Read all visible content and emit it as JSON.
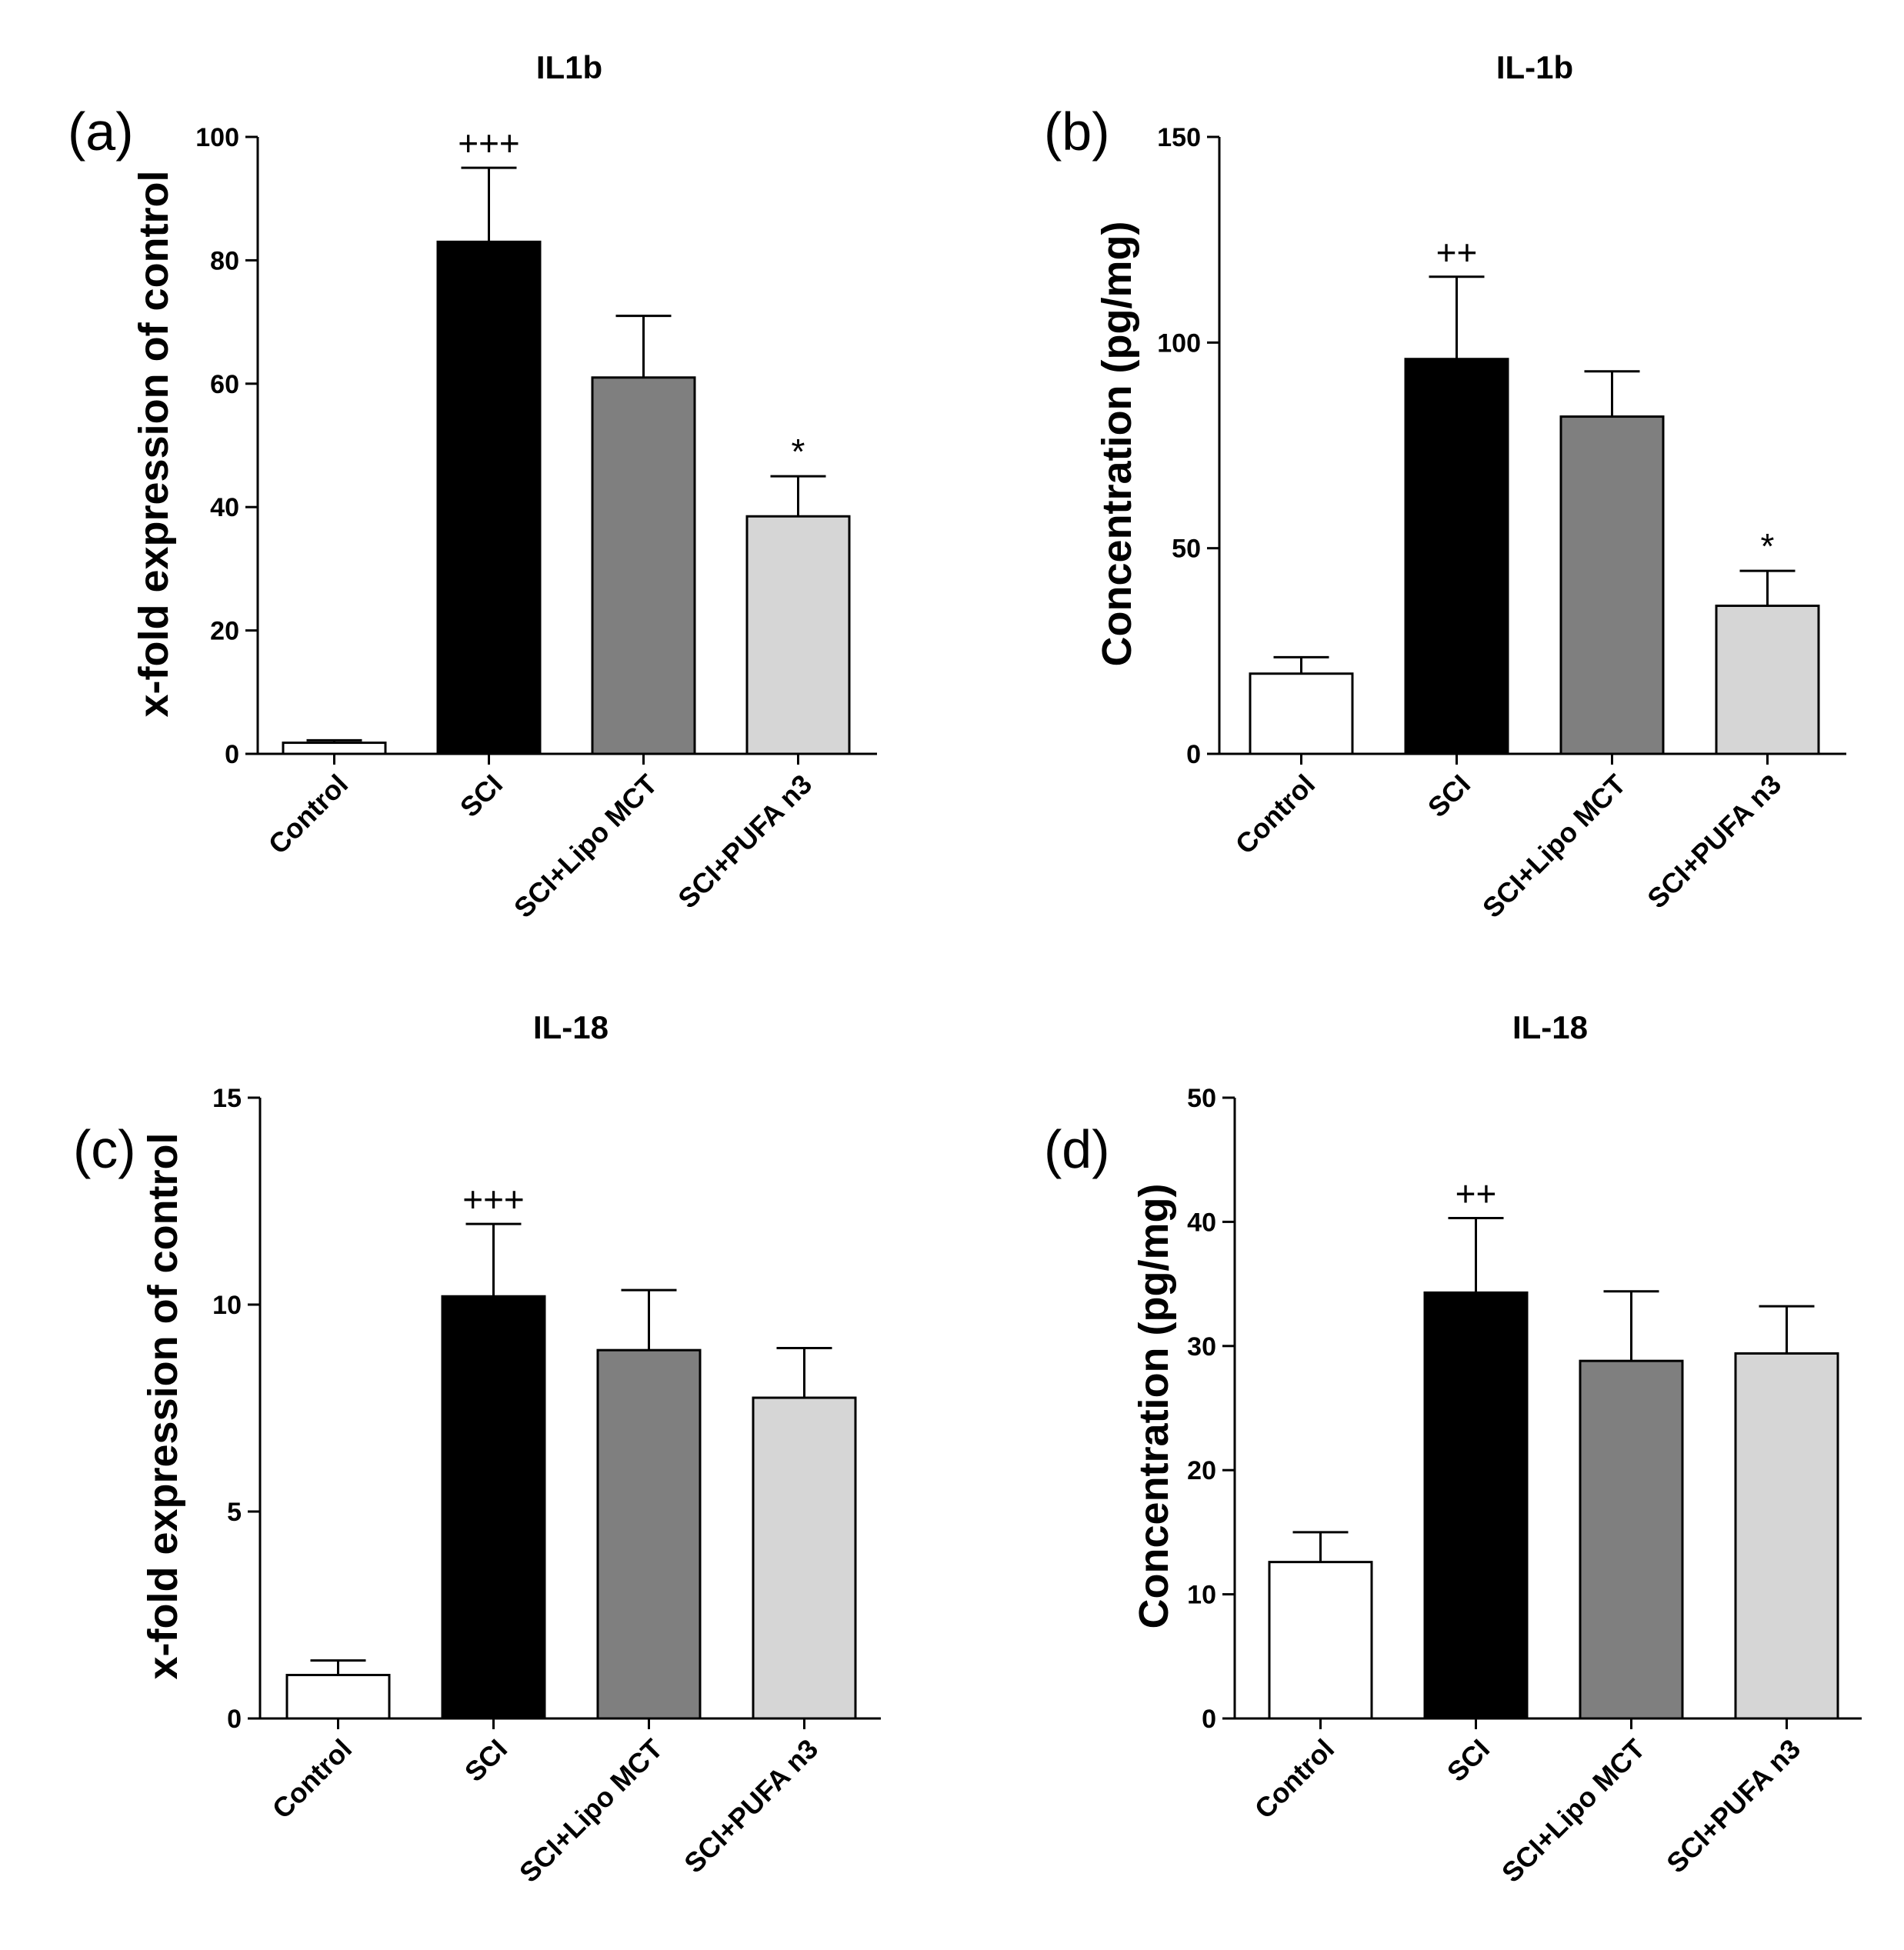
{
  "chart_data": [
    {
      "panel_label": "(a)",
      "type": "bar",
      "title": "IL1b",
      "ylabel": "x-fold expression of control",
      "ylim": [
        0,
        100
      ],
      "yticks": [
        "0",
        "20",
        "40",
        "60",
        "80",
        "100"
      ],
      "categories": [
        "Control",
        "SCI",
        "SCI+Lipo MCT",
        "SCI+PUFA n3"
      ],
      "values": [
        1.8,
        83,
        61,
        38.5
      ],
      "errors": [
        0.4,
        12,
        10,
        6.5
      ],
      "annotations": [
        "",
        "+++",
        "",
        "*"
      ],
      "colors": [
        "#ffffff",
        "#000000",
        "#7f7f7f",
        "#d6d6d6"
      ]
    },
    {
      "panel_label": "(b)",
      "type": "bar",
      "title": "IL-1b",
      "ylabel": "Concentration (pg/mg)",
      "ylim": [
        0,
        150
      ],
      "yticks": [
        "0",
        "50",
        "100",
        "150"
      ],
      "categories": [
        "Control",
        "SCI",
        "SCI+Lipo MCT",
        "SCI+PUFA n3"
      ],
      "values": [
        19.5,
        96,
        82,
        36
      ],
      "errors": [
        4,
        20,
        11,
        8.5
      ],
      "annotations": [
        "",
        "++",
        "",
        "*"
      ],
      "colors": [
        "#ffffff",
        "#000000",
        "#7f7f7f",
        "#d6d6d6"
      ]
    },
    {
      "panel_label": "(c)",
      "type": "bar",
      "title": "IL-18",
      "ylabel": "x-fold expression of control",
      "ylim": [
        0,
        15
      ],
      "yticks": [
        "0",
        "5",
        "10",
        "15"
      ],
      "categories": [
        "Control",
        "SCI",
        "SCI+Lipo MCT",
        "SCI+PUFA n3"
      ],
      "values": [
        1.05,
        10.2,
        8.9,
        7.75
      ],
      "errors": [
        0.35,
        1.75,
        1.45,
        1.2
      ],
      "annotations": [
        "",
        "+++",
        "",
        ""
      ],
      "colors": [
        "#ffffff",
        "#000000",
        "#7f7f7f",
        "#d6d6d6"
      ]
    },
    {
      "panel_label": "(d)",
      "type": "bar",
      "title": "IL-18",
      "ylabel": "Concentration (pg/mg)",
      "ylim": [
        0,
        50
      ],
      "yticks": [
        "0",
        "10",
        "20",
        "30",
        "40",
        "50"
      ],
      "categories": [
        "Control",
        "SCI",
        "SCI+Lipo MCT",
        "SCI+PUFA n3"
      ],
      "values": [
        12.6,
        34.3,
        28.8,
        29.4
      ],
      "errors": [
        2.4,
        6,
        5.6,
        3.8
      ],
      "annotations": [
        "",
        "++",
        "",
        ""
      ],
      "colors": [
        "#ffffff",
        "#000000",
        "#7f7f7f",
        "#d6d6d6"
      ]
    }
  ]
}
